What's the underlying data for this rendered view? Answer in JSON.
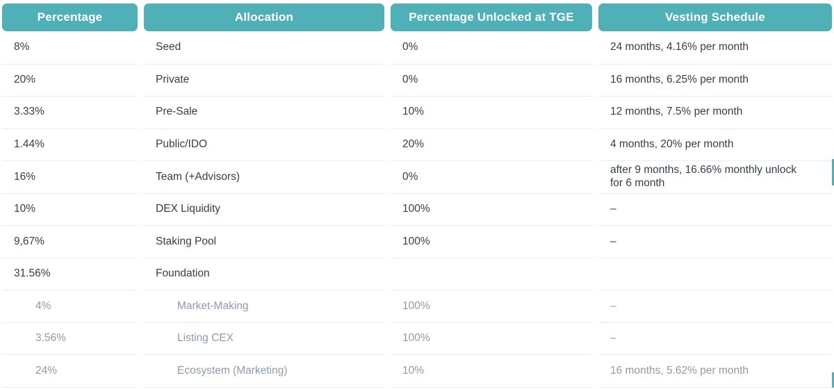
{
  "chart_data": {
    "type": "table",
    "columns": [
      "Percentage",
      "Allocation",
      "Percentage Unlocked at TGE",
      "Vesting Schedule"
    ],
    "rows": [
      {
        "percentage": "8%",
        "allocation": "Seed",
        "unlocked_at_tge": "0%",
        "vesting": "24 months, 4.16% per month",
        "subrow": false
      },
      {
        "percentage": "20%",
        "allocation": "Private",
        "unlocked_at_tge": "0%",
        "vesting": "16 months, 6.25% per month",
        "subrow": false
      },
      {
        "percentage": "3.33%",
        "allocation": "Pre-Sale",
        "unlocked_at_tge": "10%",
        "vesting": "12 months, 7.5% per month",
        "subrow": false
      },
      {
        "percentage": "1.44%",
        "allocation": "Public/IDO",
        "unlocked_at_tge": "20%",
        "vesting": "4 months, 20% per month",
        "subrow": false
      },
      {
        "percentage": "16%",
        "allocation": "Team (+Advisors)",
        "unlocked_at_tge": "0%",
        "vesting": "after 9 months, 16.66% monthly unlock for 6 month",
        "subrow": false
      },
      {
        "percentage": "10%",
        "allocation": "DEX Liquidity",
        "unlocked_at_tge": "100%",
        "vesting": "–",
        "subrow": false
      },
      {
        "percentage": "9,67%",
        "allocation": "Staking Pool",
        "unlocked_at_tge": "100%",
        "vesting": "–",
        "subrow": false
      },
      {
        "percentage": "31.56%",
        "allocation": "Foundation",
        "unlocked_at_tge": "",
        "vesting": "",
        "subrow": false
      },
      {
        "percentage": "4%",
        "allocation": "Market-Making",
        "unlocked_at_tge": "100%",
        "vesting": "–",
        "subrow": true
      },
      {
        "percentage": "3.56%",
        "allocation": "Listing CEX",
        "unlocked_at_tge": "100%",
        "vesting": "–",
        "subrow": true
      },
      {
        "percentage": "24%",
        "allocation": "Ecosystem (Marketing)",
        "unlocked_at_tge": "10%",
        "vesting": "16 months, 5.62% per month",
        "subrow": true
      }
    ]
  },
  "colors": {
    "header_bg": "#4FB0B8",
    "header_text": "#FFFFFF",
    "row_text": "#333D4B",
    "subrow_text": "#8D9AAB",
    "divider": "#E4ECF3"
  }
}
